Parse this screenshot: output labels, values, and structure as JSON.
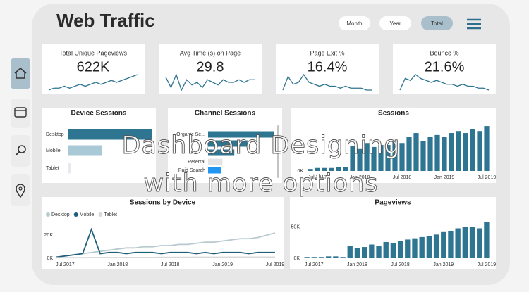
{
  "header": {
    "title": "Web Traffic",
    "buttons": [
      "Month",
      "Year",
      "Total"
    ],
    "active": 2
  },
  "kpis": [
    {
      "label": "Total Unique Pageviews",
      "value": "622K",
      "trend": [
        2,
        3,
        3,
        4,
        3,
        4,
        5,
        4,
        5,
        6,
        5,
        6,
        7,
        6,
        7,
        8,
        9,
        10
      ]
    },
    {
      "label": "Avg Time (s) on Page",
      "value": "29.8",
      "trend": [
        8,
        4,
        9,
        3,
        7,
        5,
        6,
        4,
        7,
        6,
        5,
        7,
        6,
        6,
        7,
        6,
        7,
        7
      ]
    },
    {
      "label": "Page Exit %",
      "value": "16.4%",
      "trend": [
        2,
        9,
        5,
        6,
        10,
        6,
        5,
        4,
        5,
        4,
        4,
        3,
        4,
        3,
        3,
        3,
        2,
        2
      ]
    },
    {
      "label": "Bounce %",
      "value": "21.6%",
      "trend": [
        2,
        8,
        7,
        10,
        8,
        7,
        6,
        7,
        6,
        5,
        5,
        4,
        5,
        4,
        4,
        3,
        3,
        2
      ]
    }
  ],
  "charts": [
    {
      "type": "hbar",
      "title": "Device Sessions",
      "categories": [
        "Desktop",
        "Mobile",
        "Tablet"
      ],
      "values": [
        100,
        40,
        3
      ],
      "colors": [
        "#2e7591",
        "#a9c9d6",
        "#e4eaed"
      ]
    },
    {
      "type": "hbar",
      "title": "Channel Sessions",
      "categories": [
        "Organic Se...",
        null,
        null,
        "Referral",
        "Paid Search"
      ],
      "values": [
        100,
        60,
        40,
        22,
        20
      ],
      "colors": [
        "#2e7591",
        "#2e7591",
        "#2e7591",
        "#e4e4e4",
        "#2196f3"
      ]
    },
    {
      "type": "bar",
      "title": "Sessions",
      "color": "#2e7591",
      "categories": [
        null,
        "Jul 2017",
        null,
        null,
        null,
        null,
        null,
        "Jan 2018",
        null,
        null,
        null,
        null,
        null,
        "Jul 2018",
        null,
        null,
        null,
        null,
        null,
        "Jan 2019",
        null,
        null,
        null,
        null,
        null,
        "Jul 2019"
      ],
      "values": [
        2,
        3,
        3,
        3,
        4,
        4,
        25,
        22,
        28,
        24,
        26,
        26,
        30,
        28,
        34,
        38,
        30,
        34,
        36,
        34,
        38,
        40,
        38,
        42,
        40,
        45
      ],
      "ylim": [
        0,
        50
      ],
      "yticks": [
        {
          "value": 0,
          "label": "0K"
        }
      ]
    },
    {
      "type": "line",
      "title": "Sessions by Device",
      "legend": "top-left",
      "categories": [
        null,
        "Jul 2017",
        null,
        null,
        null,
        null,
        null,
        "Jan 2018",
        null,
        null,
        null,
        null,
        null,
        "Jul 2018",
        null,
        null,
        null,
        null,
        null,
        "Jan 2019",
        null,
        null,
        null,
        null,
        null,
        "Jul 2019"
      ],
      "series": [
        {
          "name": "Desktop",
          "color": "#b9c9d0",
          "values": [
            1,
            2,
            3,
            4,
            5,
            6,
            7,
            8,
            9,
            9,
            10,
            10,
            11,
            11,
            12,
            12,
            13,
            14,
            14,
            15,
            16,
            17,
            17,
            18,
            20,
            22
          ]
        },
        {
          "name": "Mobile",
          "color": "#1f5f7a",
          "values": [
            1,
            2,
            3,
            4,
            25,
            4,
            5,
            5,
            4,
            5,
            5,
            5,
            4,
            5,
            5,
            5,
            4,
            5,
            4,
            5,
            5,
            5,
            4,
            5,
            5,
            5
          ]
        },
        {
          "name": "Tablet",
          "color": "#d8d8d8",
          "values": [
            0.5,
            0.5,
            0.5,
            0.5,
            0.6,
            0.6,
            0.6,
            0.6,
            0.7,
            0.7,
            0.7,
            0.7,
            0.8,
            0.8,
            0.8,
            0.8,
            0.9,
            0.9,
            0.9,
            0.9,
            1,
            1,
            1,
            1,
            1,
            1
          ]
        }
      ],
      "ylim": [
        0,
        30
      ],
      "yticks": [
        {
          "value": 0,
          "label": "0K"
        },
        {
          "value": 20,
          "label": "20K"
        }
      ]
    },
    {
      "type": "bar",
      "title": "Pageviews",
      "color": "#2e7591",
      "categories": [
        null,
        "Jul 2017",
        null,
        null,
        null,
        null,
        null,
        "Jan 2018",
        null,
        null,
        null,
        null,
        null,
        "Jul 2018",
        null,
        null,
        null,
        null,
        null,
        "Jan 2019",
        null,
        null,
        null,
        null,
        null,
        "Jul 2019"
      ],
      "values": [
        2,
        2,
        2,
        3,
        3,
        2,
        20,
        16,
        18,
        22,
        20,
        26,
        24,
        28,
        30,
        32,
        34,
        36,
        38,
        42,
        44,
        48,
        50,
        50,
        48,
        58
      ],
      "ylim": [
        0,
        70
      ],
      "yticks": [
        {
          "value": 0,
          "label": "0K"
        },
        {
          "value": 50,
          "label": "50K"
        }
      ]
    }
  ],
  "overlay": [
    "Dashboard Designing",
    "with more options"
  ]
}
